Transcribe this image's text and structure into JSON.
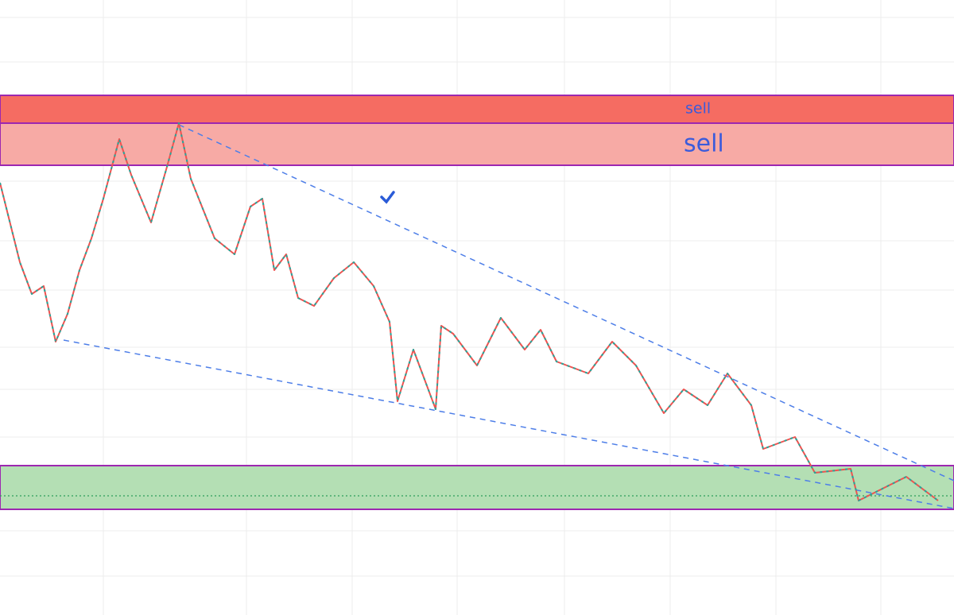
{
  "zones": [
    {
      "label": "sell"
    },
    {
      "label": "sell"
    }
  ]
}
